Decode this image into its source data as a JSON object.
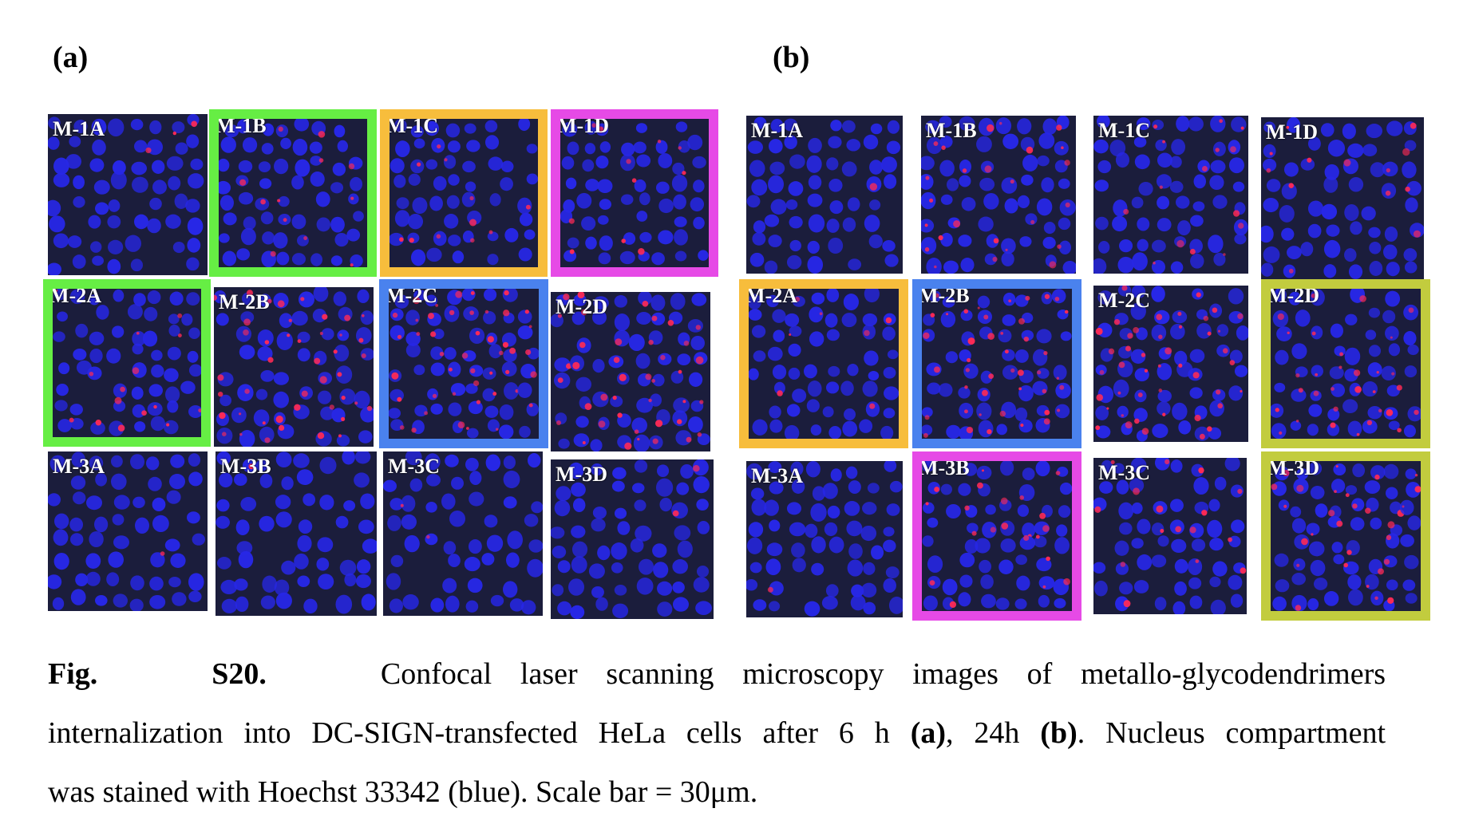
{
  "panel_labels": {
    "a": "(a)",
    "b": "(b)"
  },
  "colors": {
    "green": "#66ee44",
    "orange": "#f7bd3c",
    "magenta": "#e64ae6",
    "blue": "#4a82ee",
    "olive": "#c2cc3e",
    "nucleus": "#2727e6",
    "red_stain": "#ff2a55",
    "background": "#1b1d3c"
  },
  "panel_a": [
    {
      "label": "M-1A",
      "frame": "none",
      "red_level": 0.05
    },
    {
      "label": "M-1B",
      "frame": "green",
      "red_level": 0.25
    },
    {
      "label": "M-1C",
      "frame": "orange",
      "red_level": 0.2
    },
    {
      "label": "M-1D",
      "frame": "magenta",
      "red_level": 0.3
    },
    {
      "label": "M-2A",
      "frame": "green",
      "red_level": 0.3
    },
    {
      "label": "M-2B",
      "frame": "none",
      "red_level": 0.7
    },
    {
      "label": "M-2C",
      "frame": "blue",
      "red_level": 0.8
    },
    {
      "label": "M-2D",
      "frame": "none",
      "red_level": 0.7
    },
    {
      "label": "M-3A",
      "frame": "none",
      "red_level": 0.02
    },
    {
      "label": "M-3B",
      "frame": "none",
      "red_level": 0.02
    },
    {
      "label": "M-3C",
      "frame": "none",
      "red_level": 0.02
    },
    {
      "label": "M-3D",
      "frame": "none",
      "red_level": 0.02
    }
  ],
  "panel_b": [
    {
      "label": "M-1A",
      "frame": "none",
      "red_level": 0.05
    },
    {
      "label": "M-1B",
      "frame": "none",
      "red_level": 0.4
    },
    {
      "label": "M-1C",
      "frame": "none",
      "red_level": 0.3
    },
    {
      "label": "M-1D",
      "frame": "none",
      "red_level": 0.35
    },
    {
      "label": "M-2A",
      "frame": "orange",
      "red_level": 0.2
    },
    {
      "label": "M-2B",
      "frame": "blue",
      "red_level": 0.85
    },
    {
      "label": "M-2C",
      "frame": "none",
      "red_level": 0.75
    },
    {
      "label": "M-2D",
      "frame": "olive",
      "red_level": 0.6
    },
    {
      "label": "M-3A",
      "frame": "none",
      "red_level": 0.03
    },
    {
      "label": "M-3B",
      "frame": "magenta",
      "red_level": 0.4
    },
    {
      "label": "M-3C",
      "frame": "none",
      "red_level": 0.25
    },
    {
      "label": "M-3D",
      "frame": "olive",
      "red_level": 0.4
    }
  ],
  "caption": {
    "fig_label": "Fig.",
    "fig_number": "S20.",
    "line1": "Confocal laser scanning microscopy images of metallo-glycodendrimers",
    "line2_pre": "internalization into DC-SIGN-transfected HeLa cells after 6 h",
    "line2_a": "(a)",
    "line2_mid": ", 24h",
    "line2_b": "(b)",
    "line2_post": ". Nucleus compartment",
    "line3": "was stained with Hoechst 33342 (blue). Scale bar = 30μm."
  }
}
